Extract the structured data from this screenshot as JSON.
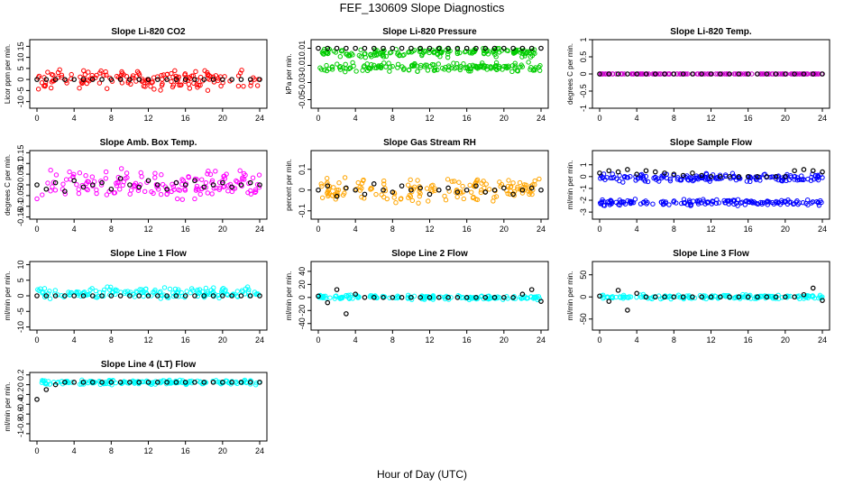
{
  "figure": {
    "title": "FEF_130609  Slope Diagnostics",
    "xlabel": "Hour of Day (UTC)"
  },
  "chart_data": [
    {
      "type": "scatter",
      "title": "Slope Li-820 CO2",
      "ylabel": "Licor ppm per min.",
      "color": "#ff0000",
      "xlim": [
        0,
        24
      ],
      "xticks": [
        0,
        4,
        8,
        12,
        16,
        20,
        24
      ],
      "ylim": [
        -13,
        18
      ],
      "yticks": [
        -10,
        -5,
        0,
        5,
        10,
        15
      ],
      "series": [
        {
          "name": "scatter",
          "center": 0,
          "spread": 5,
          "seed": 11
        },
        {
          "name": "median",
          "color": "#000000",
          "values": [
            0,
            0,
            0,
            0,
            0,
            0,
            0,
            0,
            0,
            0,
            0,
            0,
            0,
            0,
            0,
            0,
            0,
            0,
            0,
            0,
            0,
            0,
            0,
            0,
            0
          ]
        }
      ]
    },
    {
      "type": "scatter",
      "title": "Slope Li-820 Pressure",
      "ylabel": "kPa per min.",
      "color": "#00cc00",
      "xlim": [
        0,
        24
      ],
      "xticks": [
        0,
        4,
        8,
        12,
        16,
        20,
        24
      ],
      "ylim": [
        -0.06,
        0.02
      ],
      "yticks": [
        -0.05,
        -0.03,
        -0.01,
        0.01
      ],
      "series": [
        {
          "name": "band-a",
          "center": 0.005,
          "spread": 0.006,
          "seed": 21
        },
        {
          "name": "band-b",
          "center": -0.012,
          "spread": 0.006,
          "seed": 22
        },
        {
          "name": "median",
          "color": "#000000",
          "values": [
            0.01,
            0.01,
            0.01,
            0.01,
            0.01,
            0.01,
            0.01,
            0.01,
            0.01,
            0.01,
            0.01,
            0.01,
            0.01,
            0.01,
            0.01,
            0.01,
            0.01,
            0.01,
            0.01,
            0.01,
            0.01,
            0.01,
            0.01,
            0.01,
            0.01
          ]
        }
      ]
    },
    {
      "type": "scatter",
      "title": "Slope Li-820 Temp.",
      "ylabel": "degrees C per min.",
      "color": "#cc00cc",
      "xlim": [
        0,
        24
      ],
      "xticks": [
        0,
        4,
        8,
        12,
        16,
        20,
        24
      ],
      "ylim": [
        -1,
        1
      ],
      "yticks": [
        -1.0,
        -0.5,
        0.0,
        0.5,
        1.0
      ],
      "series": [
        {
          "name": "flat",
          "center": 0,
          "spread": 0,
          "seed": 31
        },
        {
          "name": "median",
          "color": "#000000",
          "values": [
            0,
            0,
            0,
            0,
            0,
            0,
            0,
            0,
            0,
            0,
            0,
            0,
            0,
            0,
            0,
            0,
            0,
            0,
            0,
            0,
            0,
            0,
            0,
            0,
            0
          ]
        }
      ]
    },
    {
      "type": "scatter",
      "title": "Slope Amb. Box Temp.",
      "ylabel": "degrees C per min.",
      "color": "#ff00ff",
      "xlim": [
        0,
        24
      ],
      "xticks": [
        0,
        4,
        8,
        12,
        16,
        20,
        24
      ],
      "ylim": [
        -0.16,
        0.16
      ],
      "yticks": [
        -0.15,
        -0.1,
        -0.05,
        0.0,
        0.05,
        0.1,
        0.15
      ],
      "series": [
        {
          "name": "scatter",
          "center": 0,
          "spread": 0.08,
          "seed": 41
        },
        {
          "name": "median",
          "color": "#000000",
          "values": [
            0,
            -0.02,
            0.01,
            -0.03,
            0.02,
            -0.01,
            0,
            0.01,
            -0.02,
            0.03,
            0,
            -0.01,
            0.02,
            0,
            -0.02,
            0.01,
            0,
            0.02,
            -0.01,
            0,
            0.01,
            -0.01,
            0,
            0.01,
            0
          ]
        }
      ]
    },
    {
      "type": "scatter",
      "title": "Slope Gas Stream RH",
      "ylabel": "percent per min.",
      "color": "#ffa500",
      "xlim": [
        0,
        24
      ],
      "xticks": [
        0,
        4,
        8,
        12,
        16,
        20,
        24
      ],
      "ylim": [
        -0.14,
        0.19
      ],
      "yticks": [
        -0.1,
        0.0,
        0.1
      ],
      "series": [
        {
          "name": "scatter",
          "center": 0,
          "spread": 0.07,
          "seed": 51
        },
        {
          "name": "median",
          "color": "#000000",
          "values": [
            0,
            0.02,
            -0.03,
            0.01,
            0,
            -0.02,
            0.03,
            0,
            -0.01,
            0.02,
            0,
            0.01,
            -0.02,
            0,
            0.01,
            -0.01,
            0,
            0.02,
            -0.01,
            0,
            0.01,
            -0.02,
            0,
            0.01,
            0
          ]
        }
      ]
    },
    {
      "type": "scatter",
      "title": "Slope Sample Flow",
      "ylabel": "ml/min per min.",
      "color": "#0000ff",
      "xlim": [
        0,
        24
      ],
      "xticks": [
        0,
        4,
        8,
        12,
        16,
        20,
        24
      ],
      "ylim": [
        -3.6,
        2.2
      ],
      "yticks": [
        -3,
        -2,
        -1,
        0,
        1
      ],
      "series": [
        {
          "name": "upper",
          "center": -0.1,
          "spread": 0.4,
          "seed": 61
        },
        {
          "name": "lower",
          "center": -2.2,
          "spread": 0.3,
          "seed": 62
        },
        {
          "name": "median",
          "color": "#000000",
          "values": [
            0.3,
            0.5,
            0.4,
            0.6,
            0.2,
            0.5,
            0.4,
            0.3,
            0.2,
            0.1,
            0.3,
            0.1,
            0,
            0,
            0,
            0,
            0,
            0,
            0,
            0,
            0,
            0.5,
            0.6,
            0.5,
            0.4
          ]
        }
      ]
    },
    {
      "type": "scatter",
      "title": "Slope Line 1 Flow",
      "ylabel": "ml/min per min.",
      "color": "#00ffff",
      "xlim": [
        0,
        24
      ],
      "xticks": [
        0,
        4,
        8,
        12,
        16,
        20,
        24
      ],
      "ylim": [
        -11,
        11
      ],
      "yticks": [
        -10,
        -5,
        0,
        5,
        10
      ],
      "series": [
        {
          "name": "scatter",
          "center": 1,
          "spread": 2,
          "seed": 71
        },
        {
          "name": "median",
          "color": "#000000",
          "values": [
            0,
            0,
            0,
            0,
            0,
            0,
            0,
            0,
            0,
            0,
            0,
            0,
            0,
            0,
            0,
            0,
            0,
            0,
            0,
            0,
            0,
            0,
            0,
            0,
            0
          ]
        }
      ]
    },
    {
      "type": "scatter",
      "title": "Slope Line 2 Flow",
      "ylabel": "ml/min per min.",
      "color": "#00ffff",
      "xlim": [
        0,
        24
      ],
      "xticks": [
        0,
        4,
        8,
        12,
        16,
        20,
        24
      ],
      "ylim": [
        -50,
        55
      ],
      "yticks": [
        -40,
        -20,
        0,
        20,
        40
      ],
      "series": [
        {
          "name": "scatter",
          "center": 0,
          "spread": 4,
          "seed": 81
        },
        {
          "name": "median",
          "color": "#000000",
          "values": [
            2,
            -8,
            12,
            -25,
            5,
            0,
            0,
            0,
            0,
            0,
            0,
            0,
            0,
            0,
            0,
            0,
            0,
            0,
            0,
            0,
            0,
            0,
            5,
            12,
            -6
          ]
        }
      ]
    },
    {
      "type": "scatter",
      "title": "Slope Line 3 Flow",
      "ylabel": "ml/min per min.",
      "color": "#00ffff",
      "xlim": [
        0,
        24
      ],
      "xticks": [
        0,
        4,
        8,
        12,
        16,
        20,
        24
      ],
      "ylim": [
        -75,
        80
      ],
      "yticks": [
        -50,
        0,
        50
      ],
      "series": [
        {
          "name": "scatter",
          "center": 0,
          "spread": 6,
          "seed": 91
        },
        {
          "name": "median",
          "color": "#000000",
          "values": [
            2,
            -10,
            15,
            -30,
            8,
            0,
            0,
            0,
            0,
            0,
            0,
            0,
            0,
            0,
            0,
            0,
            0,
            0,
            0,
            0,
            0,
            0,
            5,
            20,
            -8
          ]
        }
      ]
    },
    {
      "type": "scatter",
      "title": "Slope Line 4 (LT) Flow",
      "ylabel": "ml/min per min.",
      "color": "#00ffff",
      "xlim": [
        0,
        24
      ],
      "xticks": [
        0,
        4,
        8,
        12,
        16,
        20,
        24
      ],
      "ylim": [
        -1.15,
        0.25
      ],
      "yticks": [
        -1.0,
        -0.8,
        -0.6,
        -0.4,
        -0.2,
        0.0,
        0.2
      ],
      "series": [
        {
          "name": "scatter",
          "center": 0.05,
          "spread": 0.06,
          "seed": 101
        },
        {
          "name": "median",
          "color": "#000000",
          "values": [
            -0.3,
            -0.1,
            0.0,
            0.05,
            0.05,
            0.05,
            0.05,
            0.05,
            0.05,
            0.05,
            0.05,
            0.05,
            0.05,
            0.05,
            0.05,
            0.05,
            0.05,
            0.05,
            0.05,
            0.05,
            0.05,
            0.05,
            0.05,
            0.05,
            0.05
          ]
        }
      ]
    }
  ]
}
